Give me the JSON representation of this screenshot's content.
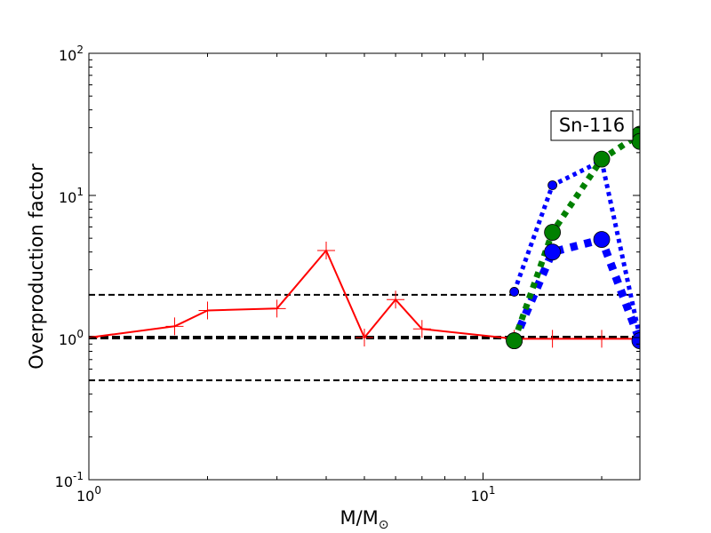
{
  "chart_data": {
    "type": "line",
    "title": "",
    "xlabel": "M/M",
    "xlabel_sub": "⊙",
    "ylabel": "Overproduction factor",
    "xscale": "log",
    "yscale": "log",
    "xlim": [
      1,
      25
    ],
    "ylim": [
      0.1,
      100
    ],
    "x_ticks": [
      {
        "value": 1,
        "base": "10",
        "exp": "0"
      },
      {
        "value": 10,
        "base": "10",
        "exp": "1"
      }
    ],
    "y_ticks": [
      {
        "value": 0.1,
        "base": "10",
        "exp": "-1"
      },
      {
        "value": 1,
        "base": "10",
        "exp": "0"
      },
      {
        "value": 10,
        "base": "10",
        "exp": "1"
      },
      {
        "value": 100,
        "base": "10",
        "exp": "2"
      }
    ],
    "grid": false,
    "annotation": "Sn-116",
    "reference_lines": [
      {
        "y": 2,
        "style": "dashed",
        "color": "#000000",
        "width": 2
      },
      {
        "y": 1,
        "style": "dashed",
        "color": "#000000",
        "width": 4
      },
      {
        "y": 0.5,
        "style": "dashed",
        "color": "#000000",
        "width": 2
      }
    ],
    "series": [
      {
        "x": [
          1,
          1.65,
          2,
          3,
          4,
          5,
          6,
          7,
          12,
          15,
          20,
          25
        ],
        "y": [
          1.0,
          1.2,
          1.55,
          1.6,
          4.1,
          1.0,
          1.85,
          1.15,
          0.98,
          0.98,
          0.98,
          0.98
        ],
        "color": "#ff0000",
        "line": "solid",
        "width": 2,
        "marker": "plus",
        "marker_size": 10
      },
      {
        "x": [
          12,
          15,
          20,
          25
        ],
        "y": [
          2.1,
          11.8,
          17.5,
          1.0
        ],
        "color": "#0000ff",
        "line": "dotted",
        "width": 5,
        "marker": "circle",
        "marker_size": 5
      },
      {
        "x": [
          12,
          15,
          20,
          25
        ],
        "y": [
          0.95,
          4.0,
          4.9,
          0.95
        ],
        "color": "#0000ff",
        "line": "dotted",
        "width": 9,
        "marker": "circle",
        "marker_size": 9
      },
      {
        "x": [
          12,
          15,
          20,
          25
        ],
        "y": [
          0.95,
          5.5,
          18.0,
          27.0
        ],
        "color": "#008000",
        "line": "dotted",
        "width": 7,
        "marker": "circle",
        "marker_size": 9
      },
      {
        "x": [
          25
        ],
        "y": [
          24.0
        ],
        "color": "#008000",
        "line": "none",
        "width": 0,
        "marker": "circle",
        "marker_size": 9
      }
    ]
  }
}
